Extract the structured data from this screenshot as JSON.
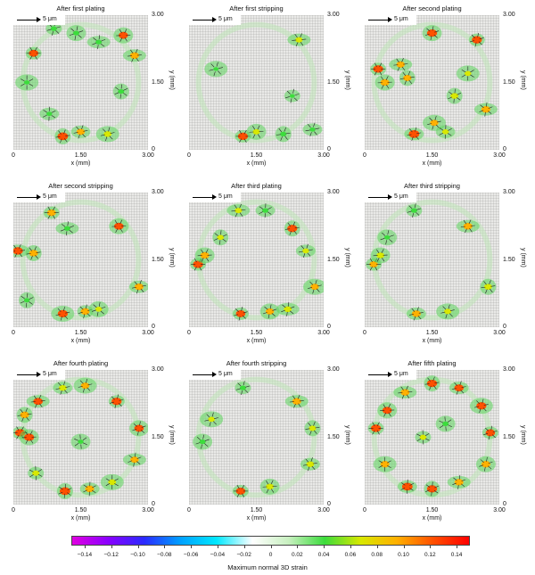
{
  "scale_bar_label": "5 μm",
  "x_axis_label": "x (mm)",
  "y_axis_label": "y (mm)",
  "x_ticks": [
    "0",
    "1.50",
    "3.00"
  ],
  "y_ticks": [
    "3.00",
    "1.50",
    "0"
  ],
  "colorbar": {
    "label": "Maximum normal 3D strain",
    "ticks": [
      "−0.14",
      "−0.12",
      "−0.10",
      "−0.08",
      "−0.06",
      "−0.04",
      "−0.02",
      "0",
      "0.02",
      "0.04",
      "0.06",
      "0.08",
      "0.10",
      "0.12",
      "0.14"
    ],
    "range": [
      -0.15,
      0.15
    ],
    "colors": [
      "#e000e0",
      "#8a00ff",
      "#2a2aff",
      "#00a0ff",
      "#00e8ff",
      "#ffffff",
      "#c8f0c0",
      "#3cdc3c",
      "#d8e800",
      "#ffb000",
      "#ff5000",
      "#ff0000"
    ]
  },
  "chart_data": {
    "type": "heatmap",
    "quantity": "Maximum normal 3D strain",
    "x_range_mm": [
      0,
      3.0
    ],
    "y_range_mm": [
      0,
      3.0
    ],
    "color_range": [
      -0.15,
      0.15
    ],
    "panels": [
      {
        "title": "After first plating",
        "hotspots": [
          {
            "x": 0.45,
            "y": 2.15,
            "v": 0.11
          },
          {
            "x": 2.45,
            "y": 2.55,
            "v": 0.11
          },
          {
            "x": 2.7,
            "y": 2.1,
            "v": 0.1
          },
          {
            "x": 1.1,
            "y": 0.3,
            "v": 0.13
          },
          {
            "x": 1.5,
            "y": 0.4,
            "v": 0.09
          },
          {
            "x": 2.1,
            "y": 0.35,
            "v": 0.08
          },
          {
            "x": 0.9,
            "y": 2.7,
            "v": 0.05
          },
          {
            "x": 1.4,
            "y": 2.6,
            "v": 0.05
          },
          {
            "x": 1.9,
            "y": 2.4,
            "v": 0.05
          },
          {
            "x": 2.4,
            "y": 1.3,
            "v": 0.05
          },
          {
            "x": 0.8,
            "y": 0.8,
            "v": 0.04
          },
          {
            "x": 0.3,
            "y": 1.5,
            "v": 0.04
          }
        ]
      },
      {
        "title": "After first stripping",
        "hotspots": [
          {
            "x": 1.2,
            "y": 0.3,
            "v": 0.12
          },
          {
            "x": 1.5,
            "y": 0.4,
            "v": 0.07
          },
          {
            "x": 2.45,
            "y": 2.45,
            "v": 0.07
          },
          {
            "x": 2.1,
            "y": 0.35,
            "v": 0.05
          },
          {
            "x": 2.75,
            "y": 0.45,
            "v": 0.04
          },
          {
            "x": 0.6,
            "y": 1.8,
            "v": 0.03
          },
          {
            "x": 2.3,
            "y": 1.2,
            "v": 0.03
          }
        ]
      },
      {
        "title": "After second plating",
        "hotspots": [
          {
            "x": 0.3,
            "y": 1.8,
            "v": 0.12
          },
          {
            "x": 0.45,
            "y": 1.5,
            "v": 0.1
          },
          {
            "x": 0.8,
            "y": 1.9,
            "v": 0.09
          },
          {
            "x": 0.95,
            "y": 1.6,
            "v": 0.09
          },
          {
            "x": 1.1,
            "y": 0.35,
            "v": 0.13
          },
          {
            "x": 1.55,
            "y": 0.6,
            "v": 0.09
          },
          {
            "x": 2.5,
            "y": 2.45,
            "v": 0.12
          },
          {
            "x": 1.5,
            "y": 2.6,
            "v": 0.12
          },
          {
            "x": 2.7,
            "y": 0.9,
            "v": 0.1
          },
          {
            "x": 2.0,
            "y": 1.2,
            "v": 0.08
          },
          {
            "x": 1.8,
            "y": 0.4,
            "v": 0.06
          },
          {
            "x": 2.3,
            "y": 1.7,
            "v": 0.06
          }
        ]
      },
      {
        "title": "After second stripping",
        "hotspots": [
          {
            "x": 0.85,
            "y": 2.55,
            "v": 0.1
          },
          {
            "x": 2.35,
            "y": 2.25,
            "v": 0.11
          },
          {
            "x": 0.1,
            "y": 1.7,
            "v": 0.12
          },
          {
            "x": 0.45,
            "y": 1.65,
            "v": 0.1
          },
          {
            "x": 2.8,
            "y": 0.9,
            "v": 0.1
          },
          {
            "x": 1.1,
            "y": 0.3,
            "v": 0.12
          },
          {
            "x": 1.6,
            "y": 0.35,
            "v": 0.1
          },
          {
            "x": 1.9,
            "y": 0.4,
            "v": 0.06
          },
          {
            "x": 1.2,
            "y": 2.2,
            "v": 0.05
          },
          {
            "x": 0.3,
            "y": 0.6,
            "v": 0.04
          }
        ]
      },
      {
        "title": "After third plating",
        "hotspots": [
          {
            "x": 0.2,
            "y": 1.4,
            "v": 0.12
          },
          {
            "x": 0.35,
            "y": 1.6,
            "v": 0.1
          },
          {
            "x": 1.1,
            "y": 2.6,
            "v": 0.07
          },
          {
            "x": 2.3,
            "y": 2.2,
            "v": 0.12
          },
          {
            "x": 2.6,
            "y": 1.7,
            "v": 0.06
          },
          {
            "x": 2.8,
            "y": 0.9,
            "v": 0.09
          },
          {
            "x": 1.15,
            "y": 0.3,
            "v": 0.11
          },
          {
            "x": 1.8,
            "y": 0.35,
            "v": 0.09
          },
          {
            "x": 2.2,
            "y": 0.4,
            "v": 0.08
          },
          {
            "x": 0.7,
            "y": 2.0,
            "v": 0.06
          },
          {
            "x": 1.7,
            "y": 2.6,
            "v": 0.05
          }
        ]
      },
      {
        "title": "After third stripping",
        "hotspots": [
          {
            "x": 0.2,
            "y": 1.4,
            "v": 0.09
          },
          {
            "x": 0.35,
            "y": 1.6,
            "v": 0.08
          },
          {
            "x": 2.3,
            "y": 2.25,
            "v": 0.1
          },
          {
            "x": 2.75,
            "y": 0.9,
            "v": 0.08
          },
          {
            "x": 1.15,
            "y": 0.3,
            "v": 0.1
          },
          {
            "x": 1.85,
            "y": 0.35,
            "v": 0.07
          },
          {
            "x": 1.1,
            "y": 2.6,
            "v": 0.05
          },
          {
            "x": 0.5,
            "y": 2.0,
            "v": 0.04
          }
        ]
      },
      {
        "title": "After fourth plating",
        "hotspots": [
          {
            "x": 0.15,
            "y": 1.6,
            "v": 0.12
          },
          {
            "x": 0.35,
            "y": 1.5,
            "v": 0.12
          },
          {
            "x": 0.55,
            "y": 2.3,
            "v": 0.11
          },
          {
            "x": 0.25,
            "y": 2.0,
            "v": 0.1
          },
          {
            "x": 1.1,
            "y": 2.6,
            "v": 0.08
          },
          {
            "x": 1.6,
            "y": 2.65,
            "v": 0.09
          },
          {
            "x": 2.3,
            "y": 2.3,
            "v": 0.12
          },
          {
            "x": 2.8,
            "y": 1.7,
            "v": 0.11
          },
          {
            "x": 2.7,
            "y": 1.0,
            "v": 0.09
          },
          {
            "x": 1.15,
            "y": 0.3,
            "v": 0.13
          },
          {
            "x": 1.7,
            "y": 0.35,
            "v": 0.1
          },
          {
            "x": 2.2,
            "y": 0.5,
            "v": 0.08
          },
          {
            "x": 0.5,
            "y": 0.7,
            "v": 0.07
          },
          {
            "x": 1.5,
            "y": 1.4,
            "v": 0.04
          }
        ]
      },
      {
        "title": "After fourth stripping",
        "hotspots": [
          {
            "x": 1.15,
            "y": 0.3,
            "v": 0.11
          },
          {
            "x": 1.8,
            "y": 0.4,
            "v": 0.08
          },
          {
            "x": 2.4,
            "y": 2.3,
            "v": 0.1
          },
          {
            "x": 2.75,
            "y": 1.7,
            "v": 0.07
          },
          {
            "x": 2.7,
            "y": 0.9,
            "v": 0.08
          },
          {
            "x": 0.5,
            "y": 1.9,
            "v": 0.06
          },
          {
            "x": 1.2,
            "y": 2.6,
            "v": 0.05
          },
          {
            "x": 0.3,
            "y": 1.4,
            "v": 0.05
          }
        ]
      },
      {
        "title": "After fifth plating",
        "hotspots": [
          {
            "x": 0.25,
            "y": 1.7,
            "v": 0.12
          },
          {
            "x": 0.5,
            "y": 2.1,
            "v": 0.11
          },
          {
            "x": 0.9,
            "y": 2.5,
            "v": 0.1
          },
          {
            "x": 1.5,
            "y": 2.7,
            "v": 0.12
          },
          {
            "x": 2.1,
            "y": 2.6,
            "v": 0.11
          },
          {
            "x": 2.6,
            "y": 2.2,
            "v": 0.12
          },
          {
            "x": 2.8,
            "y": 1.6,
            "v": 0.11
          },
          {
            "x": 2.7,
            "y": 0.9,
            "v": 0.1
          },
          {
            "x": 2.1,
            "y": 0.5,
            "v": 0.1
          },
          {
            "x": 1.5,
            "y": 0.35,
            "v": 0.12
          },
          {
            "x": 0.95,
            "y": 0.4,
            "v": 0.13
          },
          {
            "x": 0.45,
            "y": 0.9,
            "v": 0.1
          },
          {
            "x": 1.3,
            "y": 1.5,
            "v": 0.06
          },
          {
            "x": 1.8,
            "y": 1.8,
            "v": 0.05
          }
        ]
      }
    ]
  }
}
